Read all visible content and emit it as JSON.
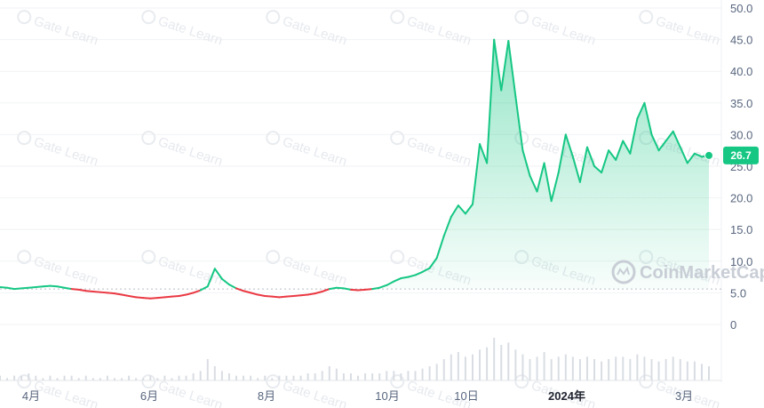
{
  "chart_data": {
    "type": "line",
    "title": "",
    "xlabel": "",
    "ylabel": "",
    "ylim": [
      0,
      50
    ],
    "y_ticks": [
      "50.0",
      "45.0",
      "40.0",
      "35.0",
      "30.0",
      "25.0",
      "20.0",
      "15.0",
      "10.0",
      "5.0",
      "0"
    ],
    "x_ticks": [
      "4月",
      "6月",
      "8月",
      "10月",
      "10日",
      "2024年",
      "3月"
    ],
    "current_value": "26.7",
    "baseline": 5.6,
    "colors": {
      "up": "#16c784",
      "down": "#ea3943",
      "area_top": "#b9ebd3",
      "volume": "#e6e8ec"
    },
    "grid": "horizontal",
    "series": [
      {
        "values": [
          5.9,
          5.8,
          5.6,
          5.7,
          5.8,
          5.9,
          6.0,
          6.1,
          6.0,
          5.8,
          5.6,
          5.5,
          5.3,
          5.2,
          5.1,
          5.0,
          4.9,
          4.7,
          4.5,
          4.3,
          4.2,
          4.1,
          4.2,
          4.3,
          4.4,
          4.5,
          4.7,
          5.0,
          5.4,
          6.0,
          8.8,
          7.2,
          6.3,
          5.7,
          5.3,
          5.0,
          4.7,
          4.5,
          4.4,
          4.3,
          4.4,
          4.5,
          4.6,
          4.7,
          4.9,
          5.2,
          5.6,
          5.8,
          5.7,
          5.5,
          5.4,
          5.5,
          5.6,
          5.8,
          6.2,
          6.8,
          7.3,
          7.5,
          7.8,
          8.3,
          8.9,
          10.5,
          14.0,
          17.0,
          18.8,
          17.5,
          19.0,
          28.5,
          25.5,
          45.0,
          37.0,
          44.8,
          36.0,
          27.5,
          23.5,
          21.0,
          25.5,
          19.5,
          24.0,
          30.0,
          26.5,
          22.5,
          28.0,
          25.0,
          24.0,
          27.5,
          26.0,
          29.0,
          27.0,
          32.5,
          35.0,
          30.0,
          27.5,
          29.0,
          30.5,
          28.0,
          25.5,
          27.0,
          26.5,
          26.7
        ]
      }
    ],
    "volume": [
      2,
      1,
      2,
      2,
      3,
      2,
      1,
      2,
      1,
      2,
      2,
      1,
      2,
      1,
      1,
      2,
      1,
      1,
      2,
      1,
      1,
      2,
      1,
      2,
      1,
      2,
      2,
      3,
      4,
      9,
      6,
      4,
      3,
      2,
      2,
      2,
      1,
      2,
      1,
      2,
      2,
      2,
      2,
      3,
      3,
      4,
      6,
      5,
      3,
      3,
      2,
      3,
      3,
      3,
      4,
      4,
      3,
      4,
      4,
      5,
      6,
      7,
      9,
      11,
      12,
      10,
      11,
      13,
      14,
      18,
      15,
      16,
      13,
      11,
      9,
      10,
      12,
      9,
      10,
      11,
      10,
      9,
      10,
      9,
      8,
      9,
      10,
      10,
      9,
      11,
      10,
      9,
      8,
      9,
      10,
      9,
      8,
      8,
      7,
      6
    ]
  },
  "watermark": {
    "text": "Gate Learn",
    "brand": "CoinMarketCap"
  }
}
